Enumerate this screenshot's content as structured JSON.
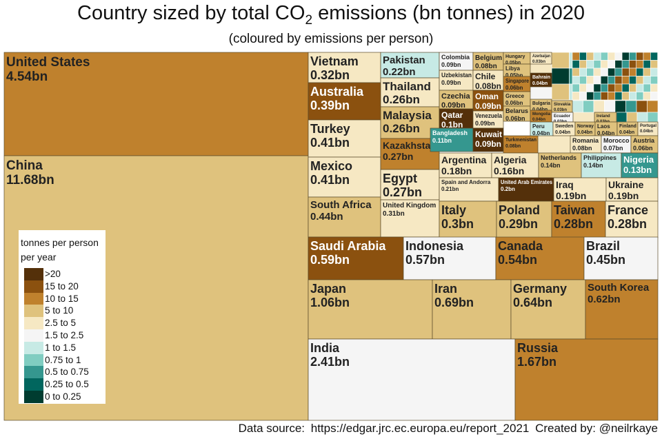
{
  "title": "Country sized  by total CO",
  "title_sub": "2",
  "title_end": " emissions (bn tonnes) in 2020",
  "subtitle": "(coloured by emissions per person)",
  "footer": {
    "source_label": "Data source:",
    "source_url": "https://edgar.jrc.ec.europa.eu/report_2021",
    "credit": "Created by: @neilrkaye"
  },
  "legend": {
    "title_line1": "tonnes per person",
    "title_line2": "per year",
    "items": [
      {
        "label": ">20",
        "color": "#54300a"
      },
      {
        "label": "15 to 20",
        "color": "#8b510f"
      },
      {
        "label": "10 to 15",
        "color": "#bf812d"
      },
      {
        "label": "5 to 10",
        "color": "#dfc27d"
      },
      {
        "label": "2.5 to 5",
        "color": "#f6e8c3"
      },
      {
        "label": "1.5 to 2.5",
        "color": "#f5f5f5"
      },
      {
        "label": "1 to 1.5",
        "color": "#c7eae5"
      },
      {
        "label": "0.75 to 1",
        "color": "#80cdc1"
      },
      {
        "label": "0.5 to 0.75",
        "color": "#35978f"
      },
      {
        "label": "0.25 to 0.5",
        "color": "#01665e"
      },
      {
        "label": "0 to 0.25",
        "color": "#003c30"
      }
    ]
  },
  "chart_data": {
    "type": "treemap",
    "value_unit": "bn tonnes CO2",
    "color_variable": "tonnes per person per year",
    "items": [
      {
        "name": "United States",
        "value": 4.54,
        "label": "4.54bn",
        "per_capita_band": "10 to 15"
      },
      {
        "name": "China",
        "value": 11.68,
        "label": "11.68bn",
        "per_capita_band": "5 to 10"
      },
      {
        "name": "Vietnam",
        "value": 0.32,
        "label": "0.32bn",
        "per_capita_band": "2.5 to 5"
      },
      {
        "name": "Australia",
        "value": 0.39,
        "label": "0.39bn",
        "per_capita_band": "15 to 20"
      },
      {
        "name": "Turkey",
        "value": 0.41,
        "label": "0.41bn",
        "per_capita_band": "2.5 to 5"
      },
      {
        "name": "Mexico",
        "value": 0.41,
        "label": "0.41bn",
        "per_capita_band": "2.5 to 5"
      },
      {
        "name": "South Africa",
        "value": 0.44,
        "label": "0.44bn",
        "per_capita_band": "5 to 10"
      },
      {
        "name": "Pakistan",
        "value": 0.22,
        "label": "0.22bn",
        "per_capita_band": "1 to 1.5"
      },
      {
        "name": "Thailand",
        "value": 0.26,
        "label": "0.26bn",
        "per_capita_band": "2.5 to 5"
      },
      {
        "name": "Malaysia",
        "value": 0.26,
        "label": "0.26bn",
        "per_capita_band": "5 to 10"
      },
      {
        "name": "Kazakhstan",
        "value": 0.27,
        "label": "0.27bn",
        "per_capita_band": "10 to 15"
      },
      {
        "name": "Egypt",
        "value": 0.27,
        "label": "0.27bn",
        "per_capita_band": "2.5 to 5"
      },
      {
        "name": "United Kingdom",
        "value": 0.31,
        "label": "0.31bn",
        "per_capita_band": "2.5 to 5"
      },
      {
        "name": "Colombia",
        "value": 0.09,
        "label": "0.09bn",
        "per_capita_band": "1.5 to 2.5"
      },
      {
        "name": "Uzbekistan",
        "value": 0.09,
        "label": "0.09bn",
        "per_capita_band": "2.5 to 5"
      },
      {
        "name": "Czechia",
        "value": 0.09,
        "label": "0.09bn",
        "per_capita_band": "5 to 10"
      },
      {
        "name": "Qatar",
        "value": 0.1,
        "label": "0.1bn",
        "per_capita_band": ">20"
      },
      {
        "name": "Bangladesh",
        "value": 0.11,
        "label": "0.11bn",
        "per_capita_band": "0.5 to 0.75"
      },
      {
        "name": "Belgium",
        "value": 0.08,
        "label": "0.08bn",
        "per_capita_band": "5 to 10"
      },
      {
        "name": "Chile",
        "value": 0.08,
        "label": "0.08bn",
        "per_capita_band": "2.5 to 5"
      },
      {
        "name": "Oman",
        "value": 0.09,
        "label": "0.09bn",
        "per_capita_band": "15 to 20"
      },
      {
        "name": "Venezuela",
        "value": 0.09,
        "label": "0.09bn",
        "per_capita_band": "2.5 to 5"
      },
      {
        "name": "Kuwait",
        "value": 0.09,
        "label": "0.09bn",
        "per_capita_band": ">20"
      },
      {
        "name": "Hungary",
        "value": 0.05,
        "label": "0.05bn",
        "per_capita_band": "5 to 10"
      },
      {
        "name": "Libya",
        "value": 0.05,
        "label": "0.05bn",
        "per_capita_band": "5 to 10"
      },
      {
        "name": "Singapore",
        "value": 0.06,
        "label": "0.06bn",
        "per_capita_band": "10 to 15"
      },
      {
        "name": "Greece",
        "value": 0.06,
        "label": "0.06bn",
        "per_capita_band": "5 to 10"
      },
      {
        "name": "Belarus",
        "value": 0.06,
        "label": "0.06bn",
        "per_capita_band": "5 to 10"
      },
      {
        "name": "Azerbaijan",
        "value": 0.03,
        "label": "0.03bn",
        "per_capita_band": "2.5 to 5"
      },
      {
        "name": "Bahrain",
        "value": 0.04,
        "label": "0.04bn",
        "per_capita_band": ">20"
      },
      {
        "name": "Bulgaria",
        "value": 0.04,
        "label": "0.04bn",
        "per_capita_band": "5 to 10"
      },
      {
        "name": "Slovakia",
        "value": 0.03,
        "label": "0.03bn",
        "per_capita_band": "5 to 10"
      },
      {
        "name": "Mongolia",
        "value": 0.04,
        "label": "0.04bn",
        "per_capita_band": "10 to 15"
      },
      {
        "name": "Ecuador",
        "value": 0.03,
        "label": "0.03bn",
        "per_capita_band": "1.5 to 2.5"
      },
      {
        "name": "Ireland",
        "value": 0.03,
        "label": "0.03bn",
        "per_capita_band": "5 to 10"
      },
      {
        "name": "Turkmenistan",
        "value": 0.08,
        "label": "0.08bn",
        "per_capita_band": "10 to 15"
      },
      {
        "name": "Peru",
        "value": 0.04,
        "label": "0.04bn",
        "per_capita_band": "1 to 1.5"
      },
      {
        "name": "Sweden",
        "value": 0.04,
        "label": "0.04bn",
        "per_capita_band": "2.5 to 5"
      },
      {
        "name": "Norway",
        "value": 0.04,
        "label": "0.04bn",
        "per_capita_band": "5 to 10"
      },
      {
        "name": "Laos",
        "value": 0.04,
        "label": "0.04bn",
        "per_capita_band": "5 to 10"
      },
      {
        "name": "Finland",
        "value": 0.04,
        "label": "0.04bn",
        "per_capita_band": "5 to 10"
      },
      {
        "name": "Portugal",
        "value": 0.04,
        "label": "0.04bn",
        "per_capita_band": "2.5 to 5"
      },
      {
        "name": "Romania",
        "value": 0.08,
        "label": "0.08bn",
        "per_capita_band": "2.5 to 5"
      },
      {
        "name": "Morocco",
        "value": 0.07,
        "label": "0.07bn",
        "per_capita_band": "1.5 to 2.5"
      },
      {
        "name": "Austria",
        "value": 0.06,
        "label": "0.06bn",
        "per_capita_band": "5 to 10"
      },
      {
        "name": "Argentina",
        "value": 0.18,
        "label": "0.18bn",
        "per_capita_band": "2.5 to 5"
      },
      {
        "name": "Algeria",
        "value": 0.16,
        "label": "0.16bn",
        "per_capita_band": "2.5 to 5"
      },
      {
        "name": "Netherlands",
        "value": 0.14,
        "label": "0.14bn",
        "per_capita_band": "5 to 10"
      },
      {
        "name": "Philippines",
        "value": 0.14,
        "label": "0.14bn",
        "per_capita_band": "1 to 1.5"
      },
      {
        "name": "Nigeria",
        "value": 0.13,
        "label": "0.13bn",
        "per_capita_band": "0.5 to 0.75"
      },
      {
        "name": "Spain and Andorra",
        "value": 0.21,
        "label": "0.21bn",
        "per_capita_band": "2.5 to 5"
      },
      {
        "name": "United Arab Emirates",
        "value": 0.2,
        "label": "0.2bn",
        "per_capita_band": ">20"
      },
      {
        "name": "Iraq",
        "value": 0.19,
        "label": "0.19bn",
        "per_capita_band": "2.5 to 5"
      },
      {
        "name": "Ukraine",
        "value": 0.19,
        "label": "0.19bn",
        "per_capita_band": "2.5 to 5"
      },
      {
        "name": "Italy",
        "value": 0.3,
        "label": "0.3bn",
        "per_capita_band": "5 to 10"
      },
      {
        "name": "Poland",
        "value": 0.29,
        "label": "0.29bn",
        "per_capita_band": "5 to 10"
      },
      {
        "name": "Taiwan",
        "value": 0.28,
        "label": "0.28bn",
        "per_capita_band": "10 to 15"
      },
      {
        "name": "France",
        "value": 0.28,
        "label": "0.28bn",
        "per_capita_band": "2.5 to 5"
      },
      {
        "name": "Saudi Arabia",
        "value": 0.59,
        "label": "0.59bn",
        "per_capita_band": "15 to 20"
      },
      {
        "name": "Indonesia",
        "value": 0.57,
        "label": "0.57bn",
        "per_capita_band": "1.5 to 2.5"
      },
      {
        "name": "Canada",
        "value": 0.54,
        "label": "0.54bn",
        "per_capita_band": "10 to 15"
      },
      {
        "name": "Brazil",
        "value": 0.45,
        "label": "0.45bn",
        "per_capita_band": "1.5 to 2.5"
      },
      {
        "name": "Japan",
        "value": 1.06,
        "label": "1.06bn",
        "per_capita_band": "5 to 10"
      },
      {
        "name": "Iran",
        "value": 0.69,
        "label": "0.69bn",
        "per_capita_band": "5 to 10"
      },
      {
        "name": "Germany",
        "value": 0.64,
        "label": "0.64bn",
        "per_capita_band": "5 to 10"
      },
      {
        "name": "South Korea",
        "value": 0.62,
        "label": "0.62bn",
        "per_capita_band": "10 to 15"
      },
      {
        "name": "India",
        "value": 2.41,
        "label": "2.41bn",
        "per_capita_band": "1.5 to 2.5"
      },
      {
        "name": "Russia",
        "value": 1.67,
        "label": "1.67bn",
        "per_capita_band": "10 to 15"
      }
    ]
  }
}
